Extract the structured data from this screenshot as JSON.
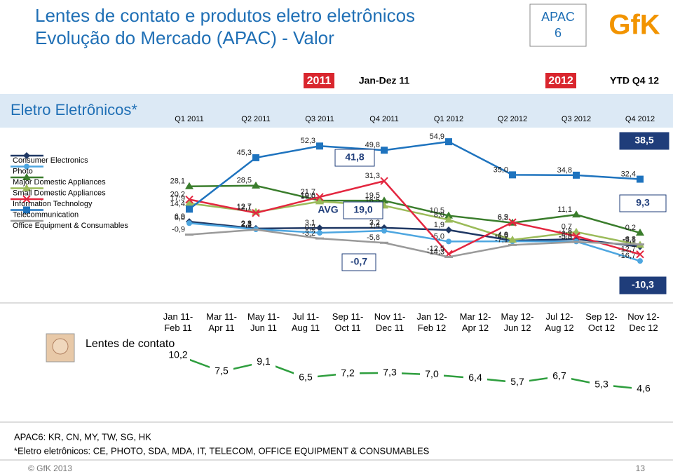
{
  "header": {
    "title": "Lentes de contato e produtos eletro eletrônicos",
    "subtitle": "Evolução do Mercado (APAC) - Valor",
    "badge_line1": "APAC",
    "badge_line2": "6",
    "logo": "GfK"
  },
  "periods": {
    "year_2011": "2011",
    "range_2011": "Jan-Dez 11",
    "year_2012": "2012",
    "range_2012": "YTD Q4 12"
  },
  "chart_data": [
    {
      "type": "line",
      "title": "Eletro Eletrônicos*",
      "categories": [
        "Q1 2011",
        "Q2 2011",
        "Q3 2011",
        "Q4 2011",
        "Q1 2012",
        "Q2 2012",
        "Q3 2012",
        "Q4 2012"
      ],
      "ylim": [
        -20,
        60
      ],
      "series": [
        {
          "name": "Consumer Electronics",
          "color": "#1f3864",
          "marker": "diamond",
          "values": [
            6.9,
            2.8,
            3.1,
            3.2,
            1.9,
            -4.5,
            -3.6,
            -8.1
          ],
          "value_labels": [
            "6,9",
            "2,8",
            "3,1",
            "3,2",
            "1,9",
            "-4,5",
            "-3,6",
            "-8,1"
          ]
        },
        {
          "name": "Photo",
          "color": "#4da6e0",
          "marker": "circle",
          "values": [
            6.0,
            2.3,
            0.2,
            1.4,
            -5.0,
            -4.9,
            -5.0,
            -16.7
          ],
          "value_labels": [
            "6,0",
            "2,3",
            "0,2",
            "1,4",
            "-5,0",
            "-4,9",
            "-5,0",
            "-16,7"
          ]
        },
        {
          "name": "Major Domestic Appliances",
          "color": "#3a7d2c",
          "marker": "triangle",
          "values": [
            28.1,
            28.5,
            19.6,
            19.5,
            10.5,
            6.2,
            11.1,
            0.2
          ],
          "value_labels": [
            "28,1",
            "28,5",
            "19,6",
            "19,5",
            "10,5",
            "6,2",
            "11,1",
            "0,2"
          ]
        },
        {
          "name": "Small Domestic Appliances",
          "color": "#9bbb59",
          "marker": "triangle",
          "values": [
            17.9,
            12.7,
            19.0,
            16.5,
            8.0,
            -4.0,
            0.7,
            -7.1
          ],
          "value_labels": [
            "17,9",
            "12,7",
            "19,0",
            "16,5",
            "8,0",
            "-4,0",
            "0,7",
            "-7,1"
          ]
        },
        {
          "name": "Information Technology",
          "color": "#e3263f",
          "marker": "x",
          "values": [
            20.2,
            12.1,
            21.7,
            31.3,
            -12.5,
            6.5,
            -1.8,
            -12.7
          ],
          "value_labels": [
            "20,2",
            "12,1",
            "21,7",
            "31,3",
            "-12,5",
            "6,5",
            "-1,8",
            "-12,7"
          ]
        },
        {
          "name": "Telecommunication",
          "color": "#1e73be",
          "marker": "square",
          "values": [
            14.4,
            45.3,
            52.3,
            49.8,
            54.9,
            35.0,
            34.8,
            32.4
          ],
          "value_labels": [
            "14,4",
            "45,3",
            "52,3",
            "49,8",
            "54,9",
            "35,0",
            "34,8",
            "32,4"
          ]
        },
        {
          "name": "Office Equipment & Consumables",
          "color": "#9a9a9a",
          "marker": "dash",
          "values": [
            -0.9,
            2.1,
            -3.2,
            -5.8,
            -14.3,
            -7.1,
            -5.3,
            -6.8
          ],
          "value_labels": [
            "-0,9",
            "2,1",
            "-3,2",
            "-5,8",
            "-14,3",
            "-7,1",
            "-5,3",
            "-6,8"
          ]
        }
      ],
      "avg_label": "AVG",
      "averages_2011": [
        "41,8",
        "19,0",
        "-0,7"
      ],
      "averages_2012": [
        "38,5",
        "9,3",
        "-10,3"
      ]
    },
    {
      "type": "line",
      "title": "Lentes de contato",
      "categories": [
        "Jan 11- Feb 11",
        "Mar 11- Apr 11",
        "May 11- Jun 11",
        "Jul 11- Aug 11",
        "Sep 11- Oct 11",
        "Nov 11- Dec 11",
        "Jan 12- Feb 12",
        "Mar 12- Apr 12",
        "May 12- Jun 12",
        "Jul 12- Aug 12",
        "Sep 12- Oct 12",
        "Nov 12- Dec 12"
      ],
      "values": [
        10.2,
        7.5,
        9.1,
        6.5,
        7.2,
        7.3,
        7.0,
        6.4,
        5.7,
        6.7,
        5.3,
        4.6
      ],
      "value_labels": [
        "10,2",
        "7,5",
        "9,1",
        "6,5",
        "7,2",
        "7,3",
        "7,0",
        "6,4",
        "5,7",
        "6,7",
        "5,3",
        "4,6"
      ],
      "color": "#2e9e3e",
      "ylim": [
        4,
        11
      ]
    }
  ],
  "footnotes": [
    "APAC6: KR, CN, MY, TW, SG, HK",
    "*Eletro eletrônicos: CE, PHOTO, SDA, MDA, IT, TELECOM, OFFICE EQUIPMENT & CONSUMABLES"
  ],
  "footer": {
    "copyright": "© GfK 2013",
    "page": "13"
  }
}
